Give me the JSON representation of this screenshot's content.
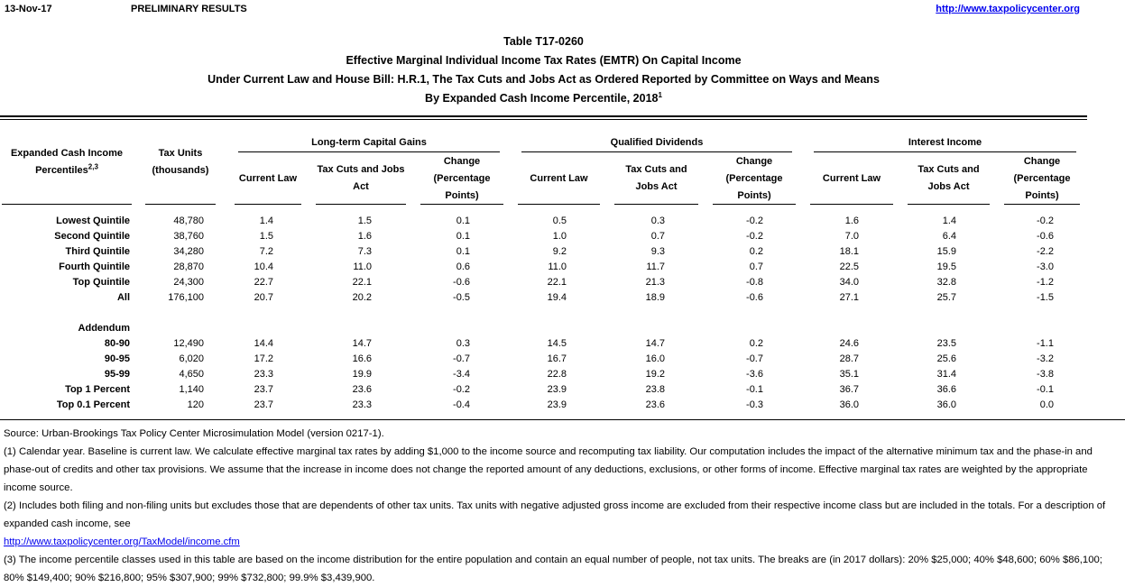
{
  "header": {
    "date": "13-Nov-17",
    "preliminary": "PRELIMINARY RESULTS",
    "site_link": "http://www.taxpolicycenter.org"
  },
  "title": {
    "line1": "Table T17-0260",
    "line2": "Effective Marginal Individual Income Tax Rates (EMTR) On Capital Income",
    "line3": "Under Current Law and House Bill: H.R.1, The Tax Cuts and Jobs Act as Ordered Reported by Committee on Ways and Means",
    "line4": "By Expanded Cash Income Percentile, 2018",
    "line4_sup": "1"
  },
  "table": {
    "columns": {
      "percentiles": {
        "text": "Expanded Cash Income Percentiles",
        "sup": "2,3"
      },
      "tax_units": "Tax Units (thousands)",
      "groups": [
        {
          "label": "Long-term Capital Gains",
          "cols": [
            "Current Law",
            "Tax Cuts and Jobs Act",
            "Change (Percentage Points)"
          ]
        },
        {
          "label": "Qualified Dividends",
          "cols": [
            "Current Law",
            "Tax Cuts and Jobs Act",
            "Change (Percentage Points)"
          ]
        },
        {
          "label": "Interest Income",
          "cols": [
            "Current Law",
            "Tax Cuts and Jobs Act",
            "Change (Percentage Points)"
          ]
        }
      ]
    },
    "rows": [
      {
        "type": "data",
        "label": "Lowest Quintile",
        "values": [
          "48,780",
          "1.4",
          "1.5",
          "0.1",
          "0.5",
          "0.3",
          "-0.2",
          "1.6",
          "1.4",
          "-0.2"
        ]
      },
      {
        "type": "data",
        "label": "Second Quintile",
        "values": [
          "38,760",
          "1.5",
          "1.6",
          "0.1",
          "1.0",
          "0.7",
          "-0.2",
          "7.0",
          "6.4",
          "-0.6"
        ]
      },
      {
        "type": "data",
        "label": "Third Quintile",
        "values": [
          "34,280",
          "7.2",
          "7.3",
          "0.1",
          "9.2",
          "9.3",
          "0.2",
          "18.1",
          "15.9",
          "-2.2"
        ]
      },
      {
        "type": "data",
        "label": "Fourth Quintile",
        "values": [
          "28,870",
          "10.4",
          "11.0",
          "0.6",
          "11.0",
          "11.7",
          "0.7",
          "22.5",
          "19.5",
          "-3.0"
        ]
      },
      {
        "type": "data",
        "label": "Top Quintile",
        "values": [
          "24,300",
          "22.7",
          "22.1",
          "-0.6",
          "22.1",
          "21.3",
          "-0.8",
          "34.0",
          "32.8",
          "-1.2"
        ]
      },
      {
        "type": "data",
        "label": "All",
        "values": [
          "176,100",
          "20.7",
          "20.2",
          "-0.5",
          "19.4",
          "18.9",
          "-0.6",
          "27.1",
          "25.7",
          "-1.5"
        ]
      },
      {
        "type": "blank"
      },
      {
        "type": "section",
        "label": "Addendum",
        "values": []
      },
      {
        "type": "data",
        "label": "80-90",
        "values": [
          "12,490",
          "14.4",
          "14.7",
          "0.3",
          "14.5",
          "14.7",
          "0.2",
          "24.6",
          "23.5",
          "-1.1"
        ]
      },
      {
        "type": "data",
        "label": "90-95",
        "values": [
          "6,020",
          "17.2",
          "16.6",
          "-0.7",
          "16.7",
          "16.0",
          "-0.7",
          "28.7",
          "25.6",
          "-3.2"
        ]
      },
      {
        "type": "data",
        "label": "95-99",
        "values": [
          "4,650",
          "23.3",
          "19.9",
          "-3.4",
          "22.8",
          "19.2",
          "-3.6",
          "35.1",
          "31.4",
          "-3.8"
        ]
      },
      {
        "type": "data",
        "label": "Top 1 Percent",
        "values": [
          "1,140",
          "23.7",
          "23.6",
          "-0.2",
          "23.9",
          "23.8",
          "-0.1",
          "36.7",
          "36.6",
          "-0.1"
        ]
      },
      {
        "type": "data",
        "label": "Top 0.1 Percent",
        "values": [
          "120",
          "23.7",
          "23.3",
          "-0.4",
          "23.9",
          "23.6",
          "-0.3",
          "36.0",
          "36.0",
          "0.0"
        ]
      }
    ]
  },
  "notes": {
    "source": "Source: Urban-Brookings Tax Policy Center Microsimulation Model (version 0217-1).",
    "note1": "(1) Calendar year. Baseline is current law. We calculate effective marginal tax rates by adding $1,000 to the income source and recomputing tax liability. Our computation includes the impact of the alternative minimum tax and the phase-in and phase-out of credits and other tax provisions. We assume that the increase in income does not change the reported amount of any deductions, exclusions, or other forms of income. Effective marginal tax rates are weighted by the appropriate income source.",
    "note2": "(2) Includes both filing and non-filing units but excludes those that are dependents of other tax units. Tax units with negative adjusted gross income are excluded from their respective income class but are included in the totals. For a description of expanded cash income, see",
    "note2_link": "http://www.taxpolicycenter.org/TaxModel/income.cfm",
    "note3": "(3) The income percentile classes used in this table are based on the income distribution for the entire population and contain an equal number of people, not tax units. The breaks are (in 2017 dollars): 20% $25,000; 40% $48,600; 60% $86,100; 80% $149,400; 90% $216,800; 95% $307,900; 99% $732,800; 99.9% $3,439,900."
  }
}
